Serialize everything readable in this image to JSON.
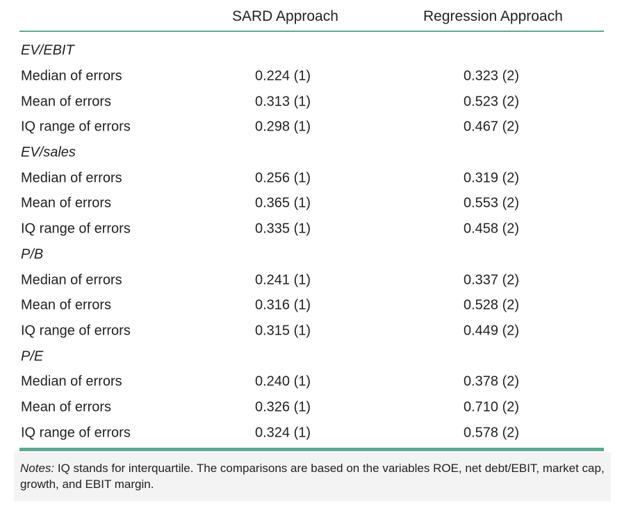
{
  "header": {
    "col1": "SARD Approach",
    "col2": "Regression Approach"
  },
  "sections": [
    {
      "title": "EV/EBIT",
      "rows": [
        {
          "label": "Median of errors",
          "sard": "0.224 (1)",
          "regression": "0.323 (2)"
        },
        {
          "label": "Mean of errors",
          "sard": "0.313 (1)",
          "regression": "0.523 (2)"
        },
        {
          "label": "IQ range of errors",
          "sard": "0.298 (1)",
          "regression": "0.467 (2)"
        }
      ]
    },
    {
      "title": "EV/sales",
      "rows": [
        {
          "label": "Median of errors",
          "sard": "0.256 (1)",
          "regression": "0.319 (2)"
        },
        {
          "label": "Mean of errors",
          "sard": "0.365 (1)",
          "regression": "0.553 (2)"
        },
        {
          "label": "IQ range of errors",
          "sard": "0.335 (1)",
          "regression": "0.458 (2)"
        }
      ]
    },
    {
      "title": "P/B",
      "rows": [
        {
          "label": "Median of errors",
          "sard": "0.241 (1)",
          "regression": "0.337 (2)"
        },
        {
          "label": "Mean of errors",
          "sard": "0.316 (1)",
          "regression": "0.528 (2)"
        },
        {
          "label": "IQ range of errors",
          "sard": "0.315 (1)",
          "regression": "0.449 (2)"
        }
      ]
    },
    {
      "title": "P/E",
      "rows": [
        {
          "label": "Median of errors",
          "sard": "0.240 (1)",
          "regression": "0.378 (2)"
        },
        {
          "label": "Mean of errors",
          "sard": "0.326 (1)",
          "regression": "0.710 (2)"
        },
        {
          "label": "IQ range of errors",
          "sard": "0.324 (1)",
          "regression": "0.578 (2)"
        }
      ]
    }
  ],
  "notes": {
    "label": "Notes:",
    "text": "IQ stands for interquartile. The comparisons are based on the variables ROE, net debt/EBIT, market cap, growth, and EBIT margin."
  },
  "colors": {
    "rule": "#5fa893",
    "notes_background": "#f3f3f3",
    "text": "#222222"
  }
}
